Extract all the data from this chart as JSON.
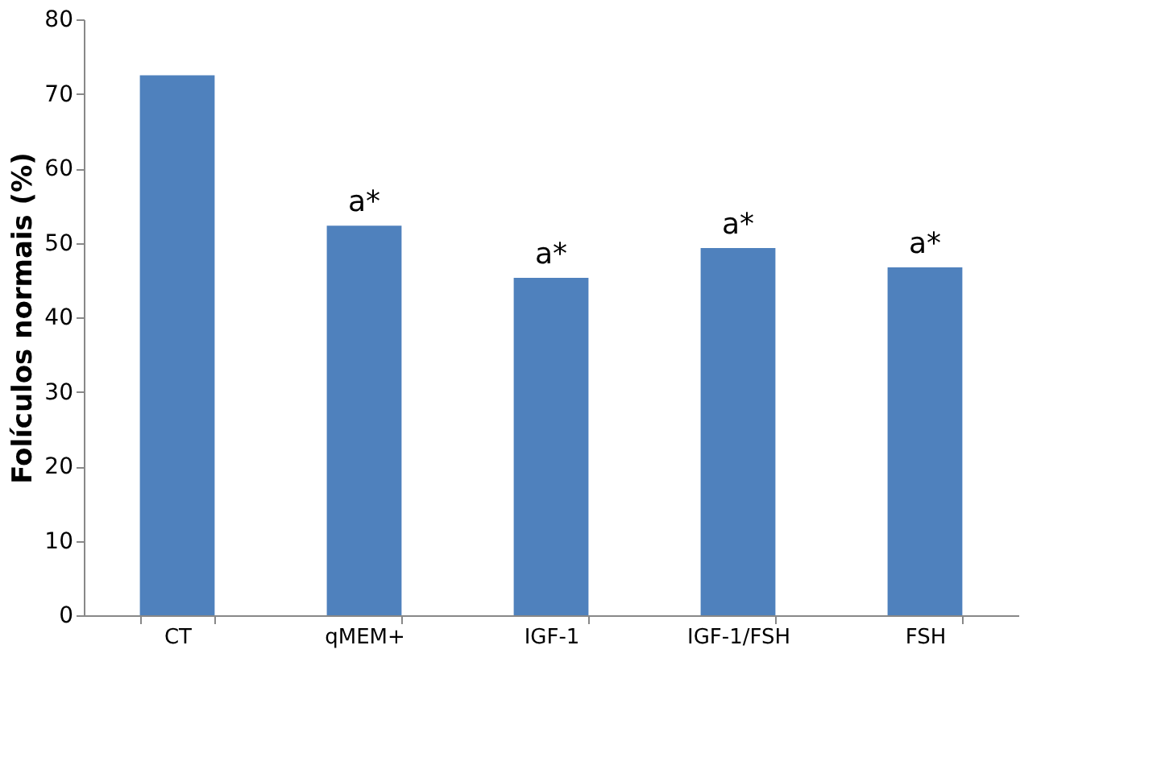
{
  "chart_data": {
    "type": "bar",
    "ylabel": "Folículos normais (%)",
    "categories": [
      "CT",
      "qMEM+",
      "IGF-1",
      "IGF-1/FSH",
      "FSH"
    ],
    "values": [
      72.5,
      52.3,
      45.3,
      49.3,
      46.7
    ],
    "color": "#4f81bd",
    "ylim": [
      0,
      80
    ],
    "yticks": [
      0,
      10,
      20,
      30,
      40,
      50,
      60,
      70,
      80
    ],
    "grid": false,
    "annotations": [
      {
        "text": "a*",
        "x": "qMEM+",
        "y": 52.3
      },
      {
        "text": "a*",
        "x": "IGF-1",
        "y": 45.3
      },
      {
        "text": "a*",
        "x": "IGF-1/FSH",
        "y": 49.3
      },
      {
        "text": "a*",
        "x": "FSH",
        "y": 46.7
      }
    ]
  }
}
